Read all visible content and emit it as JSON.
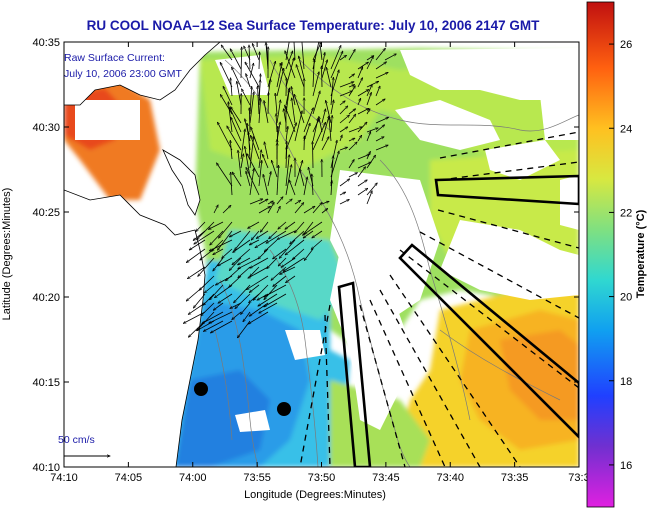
{
  "title": "RU COOL  NOAA–12  Sea Surface Temperature:  July 10, 2006 2147 GMT",
  "legend": {
    "line1": "Raw Surface Current:",
    "line2": "July 10, 2006 23:00 GMT"
  },
  "scale_label": "50 cm/s",
  "axes": {
    "xlabel": "Longitude (Degrees:Minutes)",
    "ylabel": "Latitude (Degrees:Minutes)",
    "x_ticks": [
      "74:10",
      "74:05",
      "74:00",
      "73:55",
      "73:50",
      "73:45",
      "73:40",
      "73:35",
      "73:3"
    ],
    "y_ticks": [
      "40:35",
      "40:30",
      "40:25",
      "40:20",
      "40:15",
      "40:10"
    ]
  },
  "colorbar": {
    "label": "Temperature (°C)",
    "ticks": [
      "26",
      "24",
      "22",
      "20",
      "18",
      "16"
    ],
    "range": [
      15,
      27
    ]
  },
  "colors": {
    "title": "#1a1aa8",
    "land": "#ffffff",
    "warm": "#e8401c",
    "cool": "#2a9cf0"
  }
}
